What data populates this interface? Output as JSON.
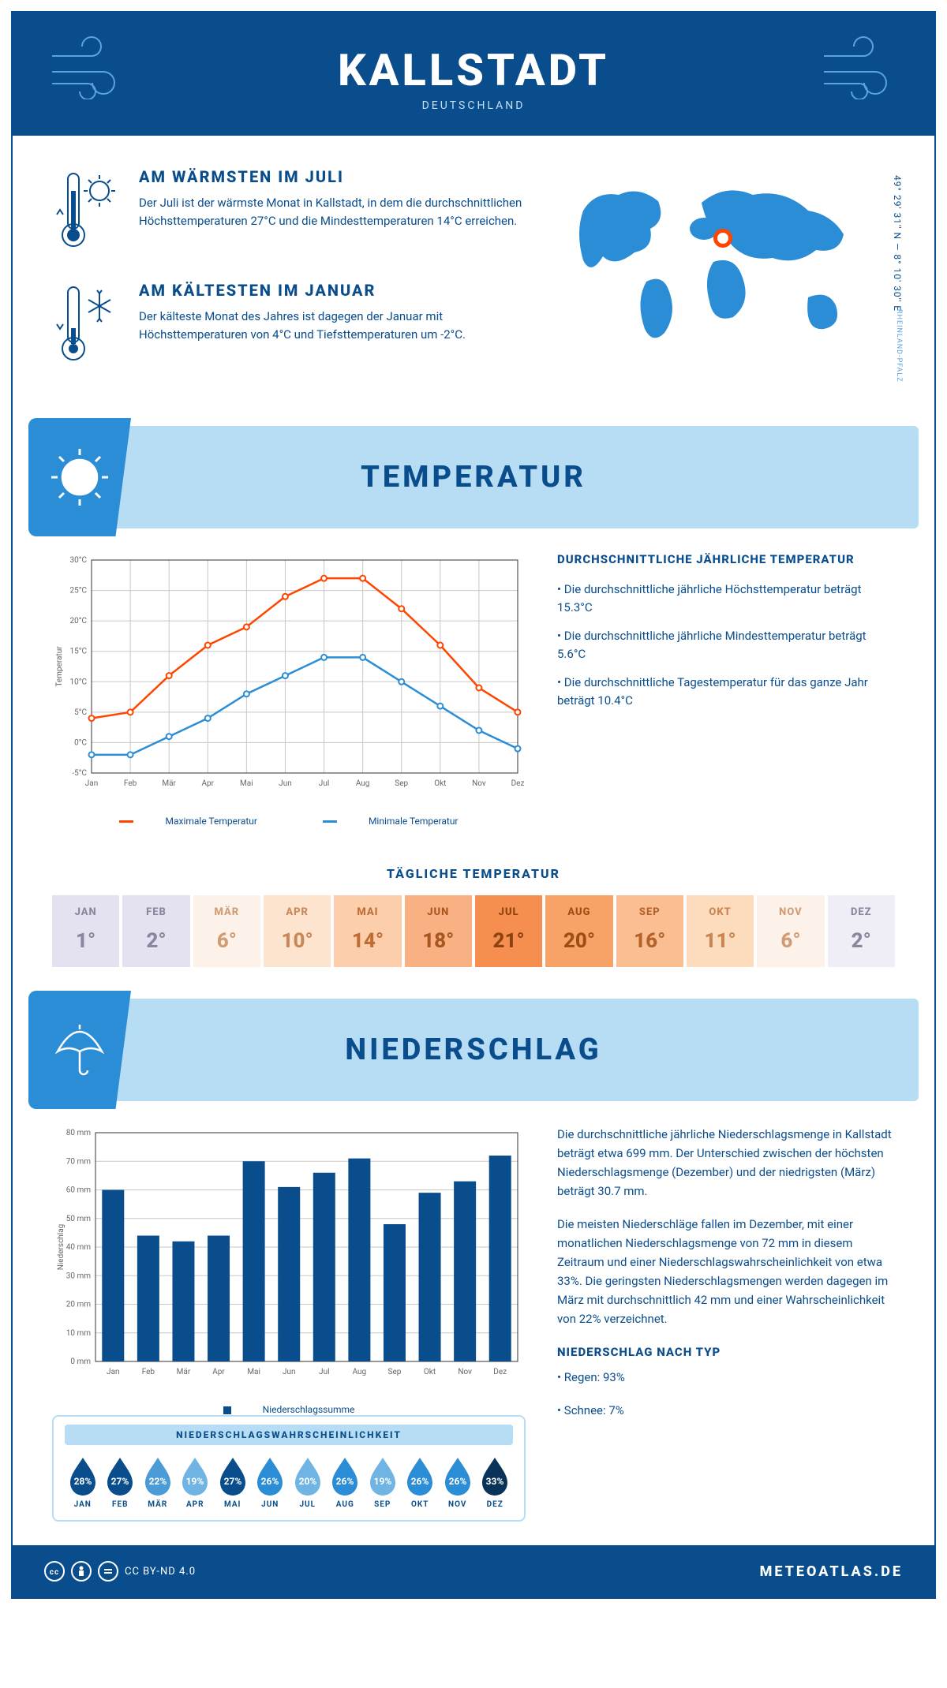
{
  "header": {
    "title": "KALLSTADT",
    "subtitle": "DEUTSCHLAND"
  },
  "coords": "49° 29' 31'' N — 8° 10' 30'' E",
  "region": "RHEINLAND-PFALZ",
  "warmest": {
    "title": "AM WÄRMSTEN IM JULI",
    "text": "Der Juli ist der wärmste Monat in Kallstadt, in dem die durchschnittlichen Höchsttemperaturen 27°C und die Mindesttemperaturen 14°C erreichen."
  },
  "coldest": {
    "title": "AM KÄLTESTEN IM JANUAR",
    "text": "Der kälteste Monat des Jahres ist dagegen der Januar mit Höchsttemperaturen von 4°C und Tiefsttemperaturen um -2°C."
  },
  "section_temp": "TEMPERATUR",
  "section_precip": "NIEDERSCHLAG",
  "months": [
    "Jan",
    "Feb",
    "Mär",
    "Apr",
    "Mai",
    "Jun",
    "Jul",
    "Aug",
    "Sep",
    "Okt",
    "Nov",
    "Dez"
  ],
  "months_uc": [
    "JAN",
    "FEB",
    "MÄR",
    "APR",
    "MAI",
    "JUN",
    "JUL",
    "AUG",
    "SEP",
    "OKT",
    "NOV",
    "DEZ"
  ],
  "temp_chart": {
    "ylabel": "Temperatur",
    "yticks": [
      -5,
      0,
      5,
      10,
      15,
      20,
      25,
      30
    ],
    "ytick_labels": [
      "-5°C",
      "0°C",
      "5°C",
      "10°C",
      "15°C",
      "20°C",
      "25°C",
      "30°C"
    ],
    "max_series": [
      4,
      5,
      11,
      16,
      19,
      24,
      27,
      27,
      22,
      16,
      9,
      5
    ],
    "min_series": [
      -2,
      -2,
      1,
      4,
      8,
      11,
      14,
      14,
      10,
      6,
      2,
      -1
    ],
    "max_color": "#ff4500",
    "min_color": "#2b8dd6",
    "grid_color": "#c8c8c8",
    "legend_max": "Maximale Temperatur",
    "legend_min": "Minimale Temperatur"
  },
  "temp_side": {
    "title": "DURCHSCHNITTLICHE JÄHRLICHE TEMPERATUR",
    "b1": "• Die durchschnittliche jährliche Höchsttemperatur beträgt 15.3°C",
    "b2": "• Die durchschnittliche jährliche Mindesttemperatur beträgt 5.6°C",
    "b3": "• Die durchschnittliche Tagestemperatur für das ganze Jahr beträgt 10.4°C"
  },
  "daily_title": "TÄGLICHE TEMPERATUR",
  "daily": {
    "values": [
      "1°",
      "2°",
      "6°",
      "10°",
      "14°",
      "18°",
      "21°",
      "20°",
      "16°",
      "11°",
      "6°",
      "2°"
    ],
    "bg": [
      "#e4e2f0",
      "#e4e2f0",
      "#fdf2ea",
      "#fde4cf",
      "#fcceab",
      "#f9b183",
      "#f58e4e",
      "#f7a368",
      "#fabe92",
      "#fddbbd",
      "#fdf2ea",
      "#efeef6"
    ],
    "fg": [
      "#8a869e",
      "#8a869e",
      "#d19b73",
      "#c98755",
      "#bf6d34",
      "#a85720",
      "#8c4310",
      "#9e4d16",
      "#b4622a",
      "#c88550",
      "#d19b73",
      "#8a869e"
    ]
  },
  "precip_chart": {
    "ylabel": "Niederschlag",
    "yticks": [
      0,
      10,
      20,
      30,
      40,
      50,
      60,
      70,
      80
    ],
    "ytick_labels": [
      "0 mm",
      "10 mm",
      "20 mm",
      "30 mm",
      "40 mm",
      "50 mm",
      "60 mm",
      "70 mm",
      "80 mm"
    ],
    "values": [
      60,
      44,
      42,
      44,
      70,
      61,
      66,
      71,
      48,
      59,
      63,
      72
    ],
    "bar_color": "#0a4d8c",
    "grid_color": "#c8c8c8",
    "legend": "Niederschlagssumme"
  },
  "precip_side": {
    "p1": "Die durchschnittliche jährliche Niederschlagsmenge in Kallstadt beträgt etwa 699 mm. Der Unterschied zwischen der höchsten Niederschlagsmenge (Dezember) und der niedrigsten (März) beträgt 30.7 mm.",
    "p2": "Die meisten Niederschläge fallen im Dezember, mit einer monatlichen Niederschlagsmenge von 72 mm in diesem Zeitraum und einer Niederschlagswahrscheinlichkeit von etwa 33%. Die geringsten Niederschlagsmengen werden dagegen im März mit durchschnittlich 42 mm und einer Wahrscheinlichkeit von 22% verzeichnet.",
    "type_title": "NIEDERSCHLAG NACH TYP",
    "type_rain": "• Regen: 93%",
    "type_snow": "• Schnee: 7%"
  },
  "prob": {
    "title": "NIEDERSCHLAGSWAHRSCHEINLICHKEIT",
    "values": [
      "28%",
      "27%",
      "22%",
      "19%",
      "27%",
      "26%",
      "20%",
      "26%",
      "19%",
      "26%",
      "26%",
      "33%"
    ],
    "colors": [
      "#0a4d8c",
      "#0a4d8c",
      "#4a9bd6",
      "#6fb4e3",
      "#0a4d8c",
      "#2b8dd6",
      "#6fb4e3",
      "#2b8dd6",
      "#6fb4e3",
      "#2b8dd6",
      "#2b8dd6",
      "#093358"
    ]
  },
  "footer": {
    "license": "CC BY-ND 4.0",
    "brand": "METEOATLAS.DE"
  },
  "colors": {
    "primary": "#0a4d8c",
    "light": "#b7ddf5",
    "accent": "#2b8dd6"
  }
}
